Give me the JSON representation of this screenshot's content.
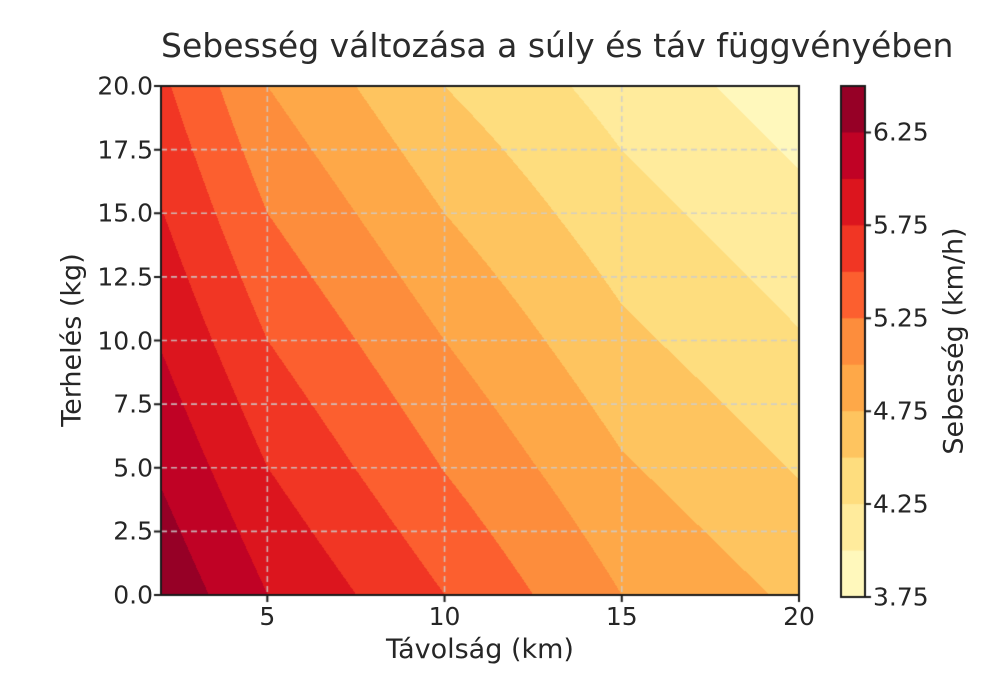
{
  "chart_data": {
    "type": "heatmap",
    "variant": "filled_contour",
    "title": "Sebesség változása a súly és táv függvényében",
    "xlabel": "Távolság (km)",
    "ylabel": "Terhelés (kg)",
    "colorbar_label": "Sebesség (km/h)",
    "x": [
      2,
      5,
      10,
      15,
      20
    ],
    "y": [
      0,
      5,
      10,
      15,
      20
    ],
    "values": [
      [
        6.45,
        6.0,
        5.5,
        5.0,
        4.7
      ],
      [
        6.21,
        5.75,
        5.24,
        4.78,
        4.48
      ],
      [
        5.98,
        5.5,
        5.0,
        4.56,
        4.27
      ],
      [
        5.76,
        5.25,
        4.75,
        4.35,
        4.07
      ],
      [
        5.55,
        5.0,
        4.5,
        4.15,
        3.87
      ]
    ],
    "row_axis": "y",
    "xlim": [
      2,
      20
    ],
    "ylim": [
      0,
      20
    ],
    "levels": [
      3.75,
      4.0,
      4.25,
      4.5,
      4.75,
      5.0,
      5.25,
      5.5,
      5.75,
      6.0,
      6.25,
      6.5
    ],
    "band_colors": [
      "#fff8bc",
      "#ffeb9c",
      "#fedd7e",
      "#fec45f",
      "#fea848",
      "#fd8d3c",
      "#fc5f2f",
      "#f13624",
      "#dc151e",
      "#c00225",
      "#960026"
    ],
    "xticks": [
      5,
      10,
      15,
      20
    ],
    "xtick_labels": [
      "5",
      "10",
      "15",
      "20"
    ],
    "yticks": [
      0,
      2.5,
      5,
      7.5,
      10,
      12.5,
      15,
      17.5,
      20
    ],
    "ytick_labels": [
      "0.0",
      "2.5",
      "5.0",
      "7.5",
      "10.0",
      "12.5",
      "15.0",
      "17.5",
      "20.0"
    ],
    "colorbar_range": [
      3.75,
      6.5
    ],
    "colorbar_ticks": [
      3.75,
      4.25,
      4.75,
      5.25,
      5.75,
      6.25
    ],
    "colorbar_tick_labels": [
      "3.75",
      "4.25",
      "4.75",
      "5.25",
      "5.75",
      "6.25"
    ],
    "grid": true,
    "grid_style": "dashed",
    "legend_position": "colorbar-right"
  },
  "colors": {
    "background": "#ffffff",
    "text": "#262626",
    "title_text": "#2b2b2b",
    "grid": "#cccccc",
    "spine": "#1a1a1a"
  }
}
